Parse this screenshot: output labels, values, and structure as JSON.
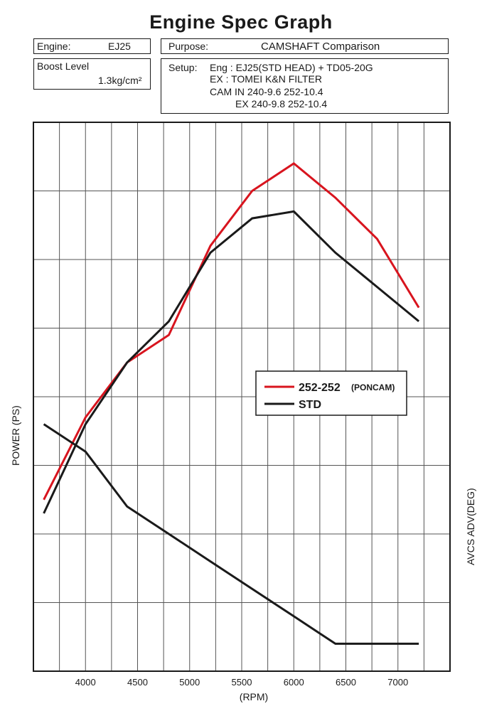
{
  "header": {
    "title": "Engine Spec Graph",
    "engine_label": "Engine:",
    "engine_value": "EJ25",
    "purpose_label": "Purpose:",
    "purpose_value": "CAMSHAFT Comparison",
    "boost_label": "Boost Level",
    "boost_value": "1.3kg/cm²",
    "setup_label": "Setup:",
    "setup_lines": [
      "Eng : EJ25(STD HEAD) + TD05-20G",
      "EX :  TOMEI K&N FILTER",
      "CAM IN           240-9.6 252-10.4",
      "EX           240-9.8 252-10.4"
    ]
  },
  "chart_data": {
    "type": "line",
    "title": "Engine Spec Graph",
    "xlabel": "(RPM)",
    "ylabel_left": "POWER (PS)",
    "ylabel_right": "AVCS ADV(DEG)",
    "xlim": [
      3500,
      7500
    ],
    "ylim": [
      0,
      8
    ],
    "x_ticks": [
      4000,
      4500,
      5000,
      5500,
      6000,
      6500,
      7000
    ],
    "grid": true,
    "legend_position": "center-right",
    "legend": [
      {
        "name": "252-252",
        "suffix": "(PONCAM)",
        "color": "#d8141e"
      },
      {
        "name": "STD",
        "suffix": "",
        "color": "#1a1a1a"
      }
    ],
    "series": [
      {
        "name": "252-252 (PONCAM) power",
        "color": "#d8141e",
        "x": [
          3600,
          4000,
          4400,
          4800,
          5200,
          5600,
          6000,
          6400,
          6800,
          7200
        ],
        "y": [
          2.5,
          3.7,
          4.5,
          4.9,
          6.2,
          7.0,
          7.4,
          6.9,
          6.3,
          5.3
        ]
      },
      {
        "name": "STD power",
        "color": "#1a1a1a",
        "x": [
          3600,
          4000,
          4400,
          4800,
          5200,
          5600,
          6000,
          6400,
          6800,
          7200
        ],
        "y": [
          2.3,
          3.6,
          4.5,
          5.1,
          6.1,
          6.6,
          6.7,
          6.1,
          5.6,
          5.1
        ]
      },
      {
        "name": "AVCS advance",
        "color": "#1a1a1a",
        "x": [
          3600,
          4000,
          4400,
          4800,
          5200,
          5600,
          6000,
          6400,
          6800,
          7200
        ],
        "y": [
          3.6,
          3.2,
          2.4,
          2.0,
          1.6,
          1.2,
          0.8,
          0.4,
          0.4,
          0.4
        ]
      }
    ]
  }
}
